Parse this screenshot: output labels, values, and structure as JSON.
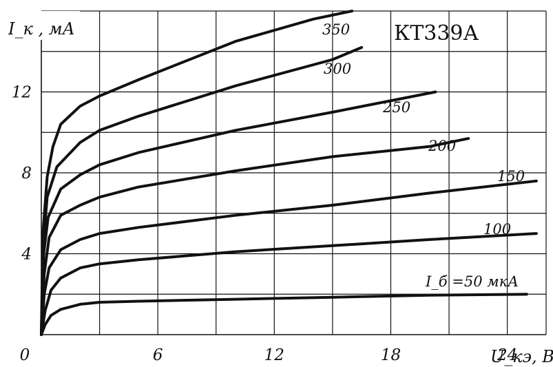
{
  "chart_data": {
    "type": "line",
    "title": "КТ339А",
    "xlabel": "U_кэ, В",
    "ylabel": "I_к , мА",
    "xlim": [
      0,
      26
    ],
    "ylim": [
      0,
      16
    ],
    "x_ticks": [
      0,
      6,
      12,
      18,
      24
    ],
    "y_ticks": [
      4,
      8,
      12
    ],
    "grid": true,
    "series": [
      {
        "name": "I_б =50 мкА",
        "color": "#111111",
        "points": [
          [
            0,
            0
          ],
          [
            0.2,
            0.5
          ],
          [
            0.5,
            0.95
          ],
          [
            1,
            1.25
          ],
          [
            2,
            1.5
          ],
          [
            3,
            1.6
          ],
          [
            5,
            1.65
          ],
          [
            10,
            1.75
          ],
          [
            15,
            1.85
          ],
          [
            20,
            1.95
          ],
          [
            25,
            2.0
          ]
        ]
      },
      {
        "name": "100",
        "color": "#111111",
        "points": [
          [
            0,
            0
          ],
          [
            0.2,
            1.2
          ],
          [
            0.5,
            2.2
          ],
          [
            1,
            2.8
          ],
          [
            2,
            3.3
          ],
          [
            3,
            3.5
          ],
          [
            5,
            3.7
          ],
          [
            10,
            4.1
          ],
          [
            15,
            4.4
          ],
          [
            20,
            4.7
          ],
          [
            25.5,
            5.0
          ]
        ]
      },
      {
        "name": "150",
        "color": "#111111",
        "points": [
          [
            0,
            0
          ],
          [
            0.15,
            2
          ],
          [
            0.4,
            3.3
          ],
          [
            1,
            4.2
          ],
          [
            2,
            4.7
          ],
          [
            3,
            5.0
          ],
          [
            5,
            5.3
          ],
          [
            10,
            5.9
          ],
          [
            15,
            6.4
          ],
          [
            20,
            7.0
          ],
          [
            25.5,
            7.6
          ]
        ]
      },
      {
        "name": "200",
        "color": "#111111",
        "points": [
          [
            0,
            0
          ],
          [
            0.15,
            3
          ],
          [
            0.4,
            4.8
          ],
          [
            1,
            5.9
          ],
          [
            2,
            6.4
          ],
          [
            3,
            6.8
          ],
          [
            5,
            7.3
          ],
          [
            10,
            8.1
          ],
          [
            15,
            8.8
          ],
          [
            20,
            9.3
          ],
          [
            22,
            9.7
          ]
        ]
      },
      {
        "name": "250",
        "color": "#111111",
        "points": [
          [
            0,
            0
          ],
          [
            0.12,
            4
          ],
          [
            0.35,
            5.8
          ],
          [
            1,
            7.2
          ],
          [
            2,
            7.9
          ],
          [
            3,
            8.4
          ],
          [
            5,
            9.0
          ],
          [
            10,
            10.1
          ],
          [
            15,
            11.0
          ],
          [
            20.3,
            12.0
          ]
        ]
      },
      {
        "name": "300",
        "color": "#111111",
        "points": [
          [
            0,
            0
          ],
          [
            0.1,
            4.5
          ],
          [
            0.3,
            6.8
          ],
          [
            0.8,
            8.3
          ],
          [
            2,
            9.5
          ],
          [
            3,
            10.1
          ],
          [
            5,
            10.8
          ],
          [
            10,
            12.3
          ],
          [
            15,
            13.6
          ],
          [
            16.5,
            14.2
          ]
        ]
      },
      {
        "name": "350",
        "color": "#111111",
        "points": [
          [
            0,
            0
          ],
          [
            0.08,
            5
          ],
          [
            0.3,
            7.8
          ],
          [
            0.6,
            9.3
          ],
          [
            1,
            10.4
          ],
          [
            2,
            11.3
          ],
          [
            3,
            11.8
          ],
          [
            5,
            12.6
          ],
          [
            10,
            14.5
          ],
          [
            14,
            15.6
          ],
          [
            16,
            16.0
          ]
        ]
      }
    ]
  },
  "labels": {
    "x_tick_labels": [
      "0",
      "6",
      "12",
      "18",
      "24"
    ],
    "y_tick_labels": [
      "4",
      "8",
      "12"
    ]
  }
}
